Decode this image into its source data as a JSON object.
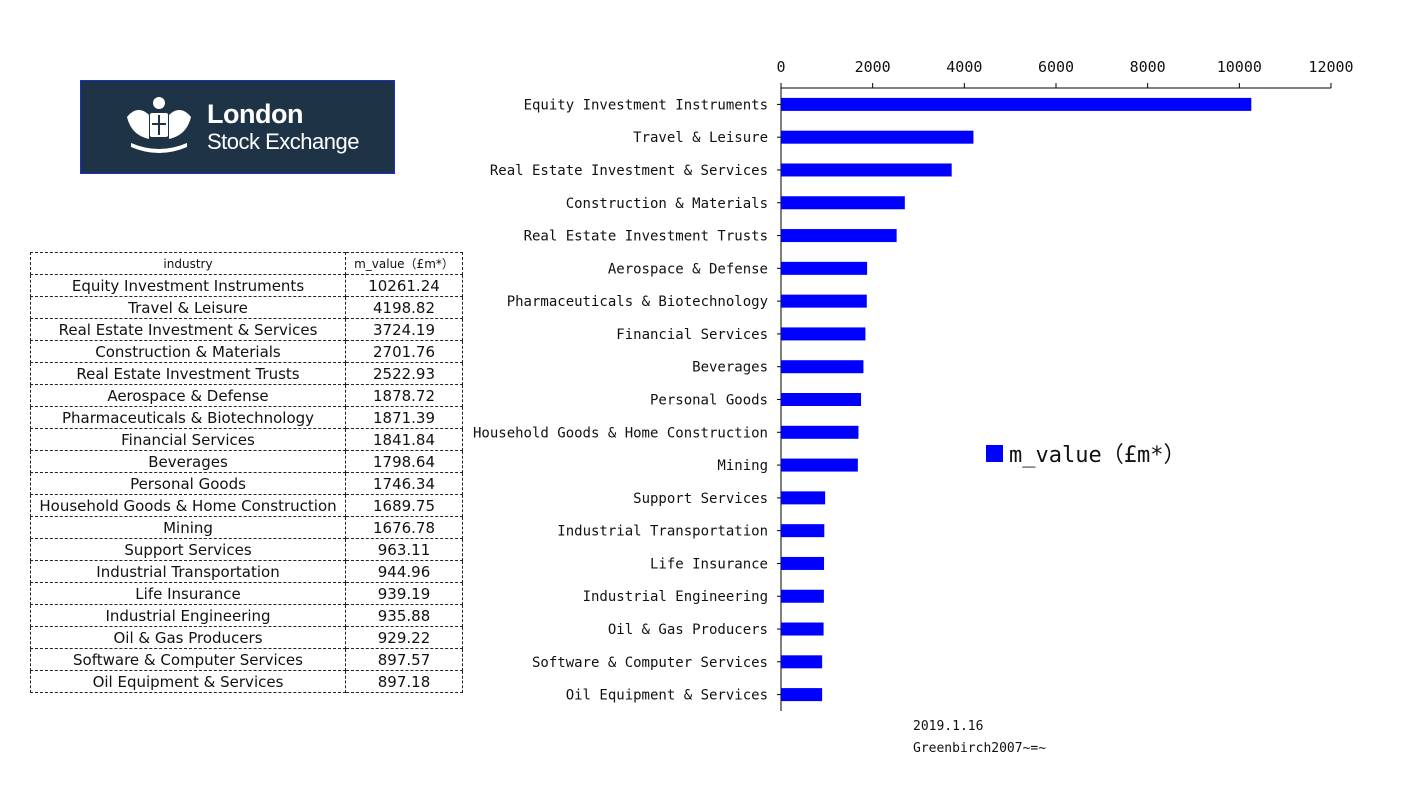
{
  "logo": {
    "line1": "London",
    "line2": "Stock Exchange"
  },
  "table": {
    "headers": [
      "industry",
      "m_value（£m*）"
    ],
    "rows": [
      [
        "Equity Investment Instruments",
        "10261.24"
      ],
      [
        "Travel & Leisure",
        "4198.82"
      ],
      [
        "Real Estate Investment & Services",
        "3724.19"
      ],
      [
        "Construction & Materials",
        "2701.76"
      ],
      [
        "Real Estate Investment Trusts",
        "2522.93"
      ],
      [
        "Aerospace & Defense",
        "1878.72"
      ],
      [
        "Pharmaceuticals & Biotechnology",
        "1871.39"
      ],
      [
        "Financial Services",
        "1841.84"
      ],
      [
        "Beverages",
        "1798.64"
      ],
      [
        "Personal Goods",
        "1746.34"
      ],
      [
        "Household Goods & Home Construction",
        "1689.75"
      ],
      [
        "Mining",
        "1676.78"
      ],
      [
        "Support Services",
        "963.11"
      ],
      [
        "Industrial Transportation",
        "944.96"
      ],
      [
        "Life Insurance",
        "939.19"
      ],
      [
        "Industrial Engineering",
        "935.88"
      ],
      [
        "Oil & Gas Producers",
        "929.22"
      ],
      [
        "Software & Computer Services",
        "897.57"
      ],
      [
        "Oil Equipment & Services",
        "897.18"
      ]
    ]
  },
  "chart_data": {
    "type": "bar",
    "orientation": "horizontal",
    "categories": [
      "Equity Investment Instruments",
      "Travel & Leisure",
      "Real Estate Investment & Services",
      "Construction & Materials",
      "Real Estate Investment Trusts",
      "Aerospace & Defense",
      "Pharmaceuticals & Biotechnology",
      "Financial Services",
      "Beverages",
      "Personal Goods",
      "Household Goods & Home Construction",
      "Mining",
      "Support Services",
      "Industrial Transportation",
      "Life Insurance",
      "Industrial Engineering",
      "Oil & Gas Producers",
      "Software & Computer Services",
      "Oil Equipment & Services"
    ],
    "series": [
      {
        "name": "m_value（£m*）",
        "values": [
          10261.24,
          4198.82,
          3724.19,
          2701.76,
          2522.93,
          1878.72,
          1871.39,
          1841.84,
          1798.64,
          1746.34,
          1689.75,
          1676.78,
          963.11,
          944.96,
          939.19,
          935.88,
          929.22,
          897.57,
          897.18
        ]
      }
    ],
    "xlim": [
      0,
      12000
    ],
    "xticks": [
      "0",
      "2000",
      "4000",
      "6000",
      "8000",
      "10000",
      "12000"
    ],
    "x_axis_position": "top",
    "grid": false,
    "legend_position": "right",
    "bar_color": "#0000ff"
  },
  "footer": {
    "date": "2019.1.16",
    "author": "Greenbirch2007~=~"
  }
}
